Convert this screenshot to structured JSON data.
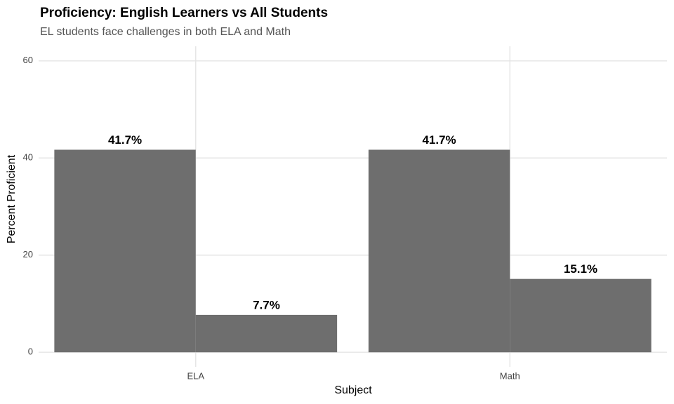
{
  "chart_data": {
    "type": "bar",
    "title": "Proficiency: English Learners vs All Students",
    "subtitle": "EL students face challenges in both ELA and Math",
    "x_label": "Subject",
    "y_label": "Percent Proficient",
    "categories": [
      "ELA",
      "Math"
    ],
    "series": [
      {
        "color": "#6e6e6e",
        "values": [
          41.7,
          41.7
        ],
        "value_labels": [
          "41.7%",
          "41.7%"
        ]
      },
      {
        "color": "#6e6e6e",
        "values": [
          7.7,
          15.1
        ],
        "value_labels": [
          "7.7%",
          "15.1%"
        ]
      }
    ],
    "ylim": [
      -3,
      63
    ],
    "yticks": [
      0,
      20,
      40,
      60
    ],
    "grid": true
  }
}
